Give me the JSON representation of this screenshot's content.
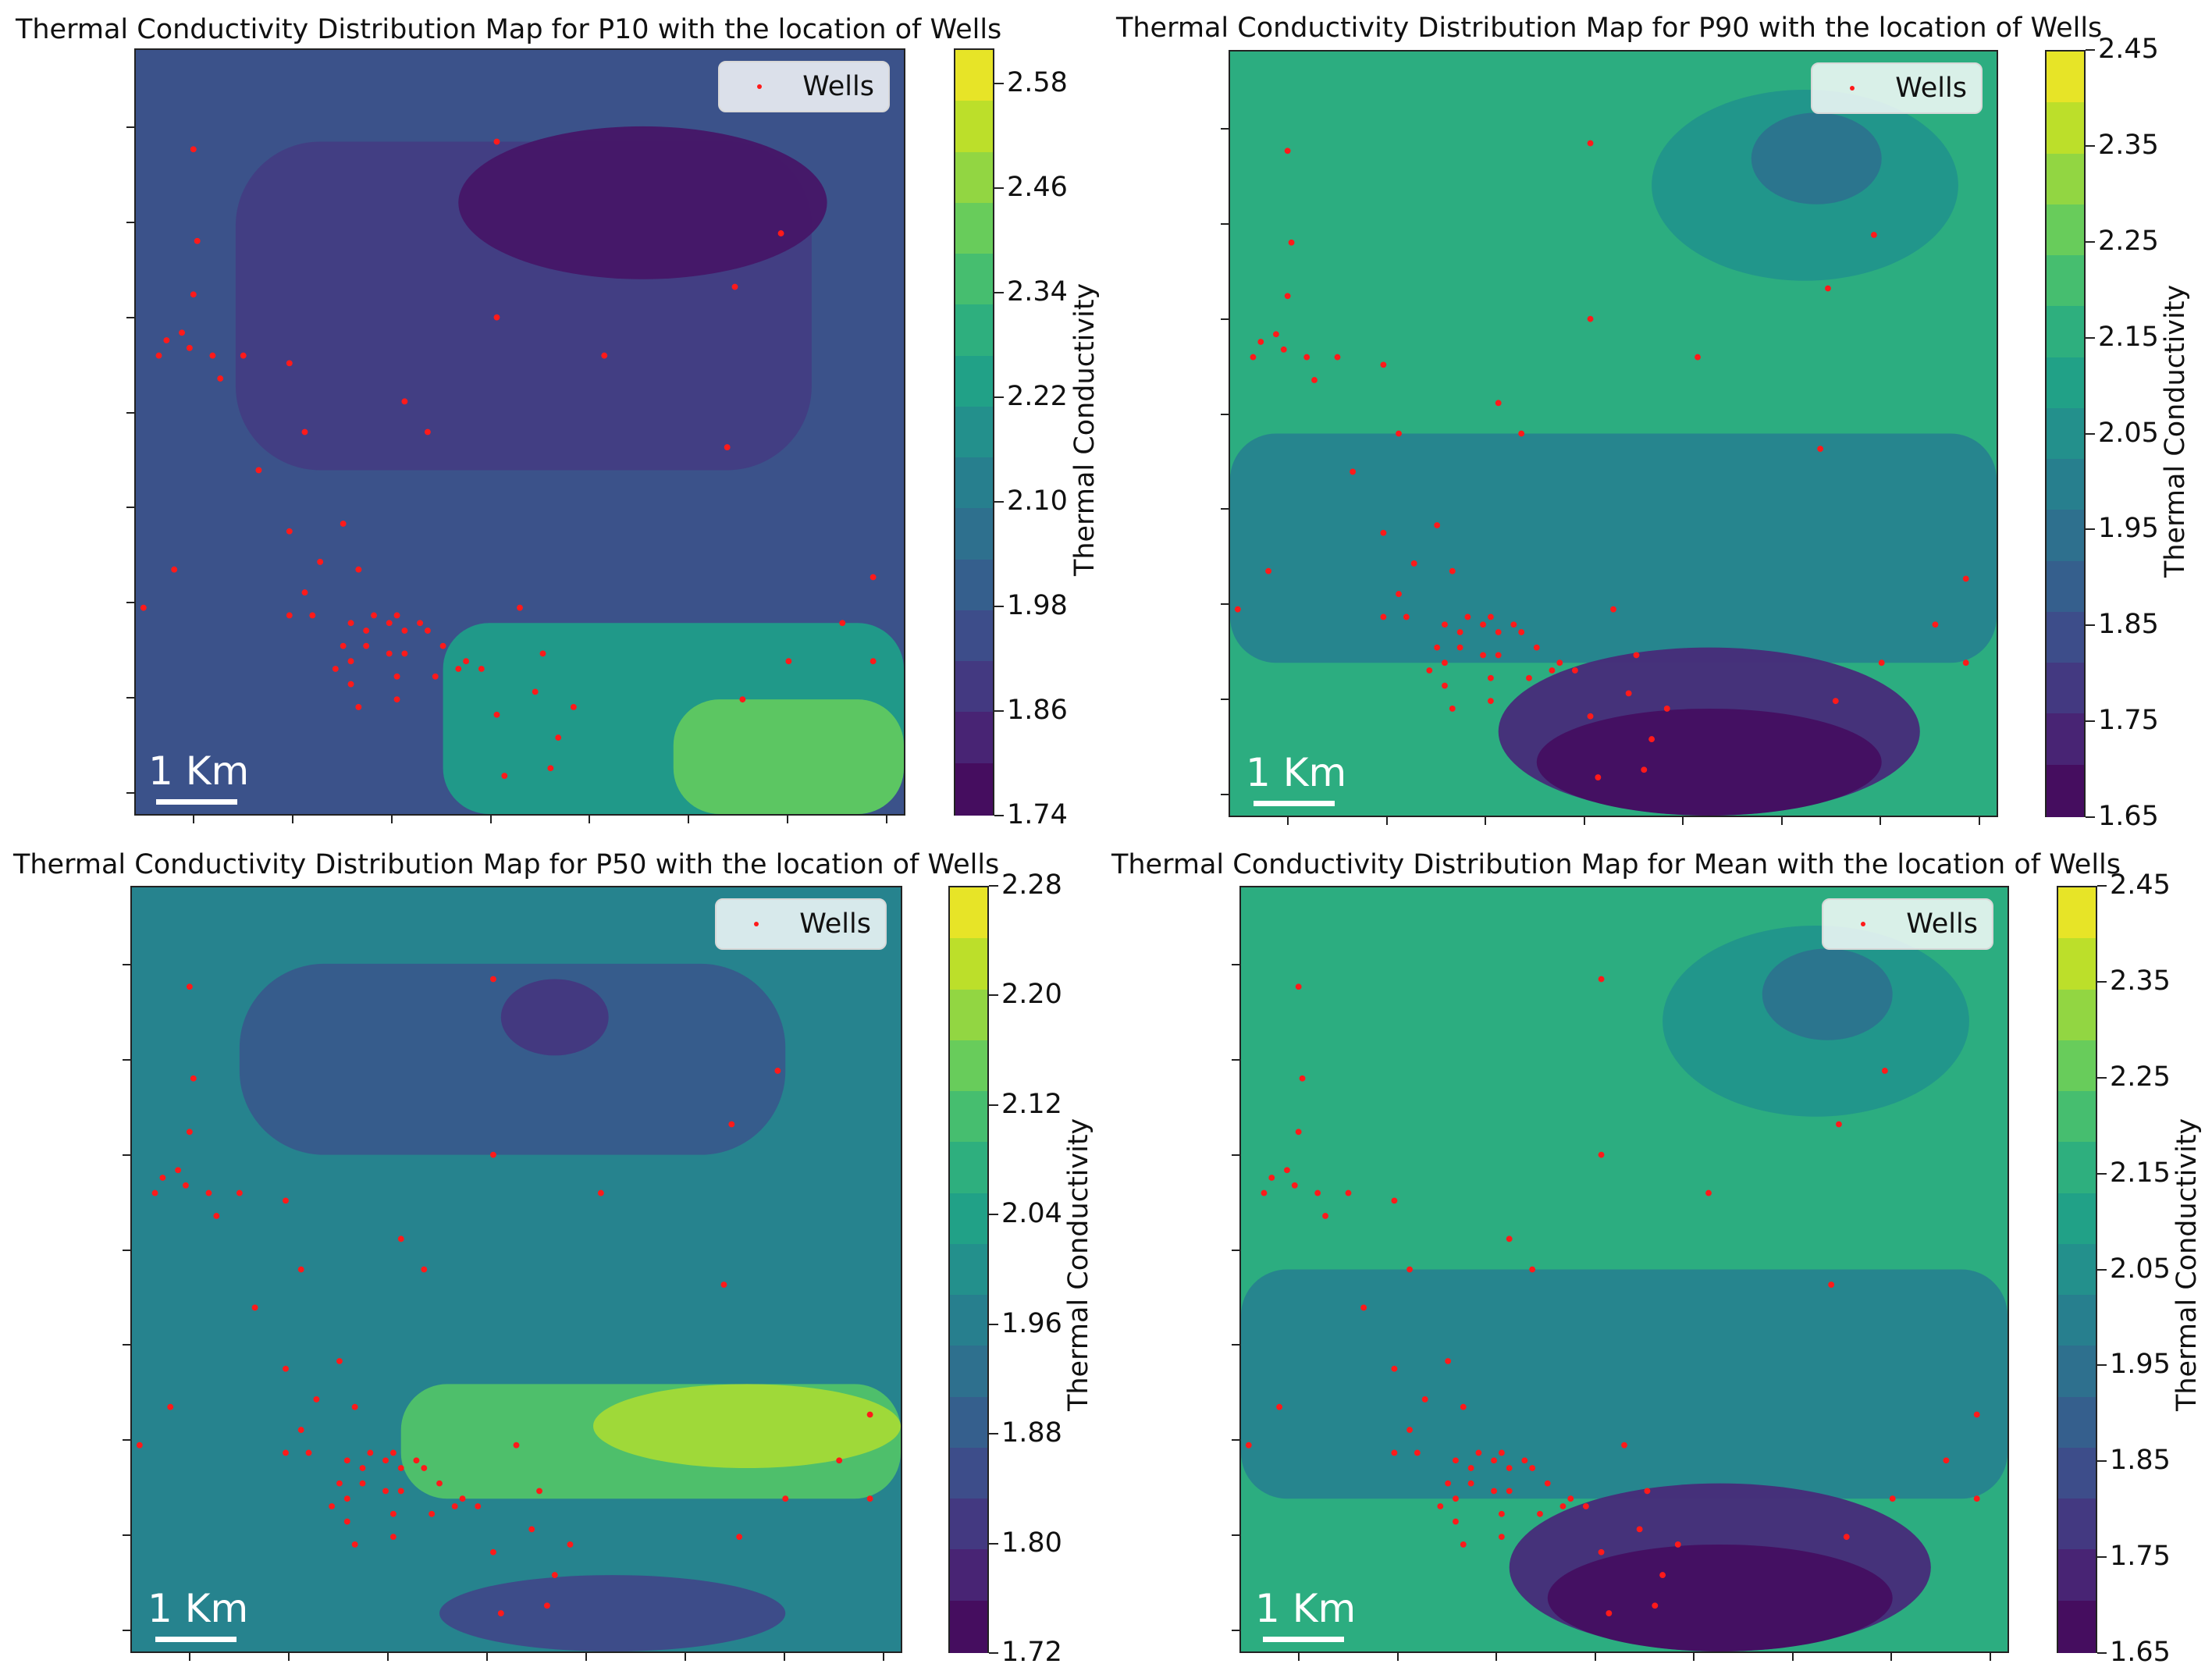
{
  "chart_data": [
    {
      "type": "heatmap",
      "title": "Thermal Conductivity Distribution Map for P10 with the location of Wells",
      "colorbar_label": "Thermal Conductivity",
      "colorbar_ticks": [
        "2.58",
        "2.46",
        "2.34",
        "2.22",
        "2.10",
        "1.98",
        "1.86",
        "1.74"
      ],
      "colorbar_range": [
        1.74,
        2.62
      ],
      "legend": "Wells",
      "legend_placement": "top-right",
      "scale_bar": "1 Km",
      "background_level": 0.25,
      "regions": [
        {
          "level": 0.18,
          "shape": "rounded-rect",
          "extent": [
            0.13,
            0.12,
            0.88,
            0.55
          ]
        },
        {
          "level": 0.06,
          "shape": "blob",
          "extent": [
            0.42,
            0.1,
            0.9,
            0.3
          ]
        },
        {
          "level": 0.55,
          "shape": "band",
          "extent": [
            0.4,
            0.75,
            1.0,
            1.0
          ]
        },
        {
          "level": 0.75,
          "shape": "band",
          "extent": [
            0.7,
            0.85,
            1.0,
            1.0
          ]
        }
      ]
    },
    {
      "type": "heatmap",
      "title": "Thermal Conductivity Distribution Map for P90 with the location of Wells",
      "colorbar_label": "Thermal Conductivity",
      "colorbar_ticks": [
        "2.45",
        "2.35",
        "2.25",
        "2.15",
        "2.05",
        "1.95",
        "1.85",
        "1.75",
        "1.65"
      ],
      "colorbar_range": [
        1.65,
        2.45
      ],
      "legend": "Wells",
      "legend_placement": "top-right",
      "scale_bar": "1 Km",
      "background_level": 0.62,
      "regions": [
        {
          "level": 0.52,
          "shape": "blob",
          "extent": [
            0.55,
            0.05,
            0.95,
            0.3
          ]
        },
        {
          "level": 0.38,
          "shape": "blob",
          "extent": [
            0.68,
            0.08,
            0.85,
            0.2
          ]
        },
        {
          "level": 0.45,
          "shape": "band",
          "extent": [
            0.0,
            0.5,
            1.0,
            0.8
          ]
        },
        {
          "level": 0.12,
          "shape": "blob",
          "extent": [
            0.35,
            0.78,
            0.9,
            1.0
          ]
        },
        {
          "level": 0.04,
          "shape": "blob",
          "extent": [
            0.4,
            0.86,
            0.85,
            1.0
          ]
        }
      ]
    },
    {
      "type": "heatmap",
      "title": "Thermal Conductivity Distribution Map for P50 with the location of Wells",
      "colorbar_label": "Thermal Conductivity",
      "colorbar_ticks": [
        "2.28",
        "2.20",
        "2.12",
        "2.04",
        "1.96",
        "1.88",
        "1.80",
        "1.72"
      ],
      "colorbar_range": [
        1.72,
        2.28
      ],
      "legend": "Wells",
      "legend_placement": "top-right",
      "scale_bar": "1 Km",
      "background_level": 0.45,
      "regions": [
        {
          "level": 0.28,
          "shape": "rounded-rect",
          "extent": [
            0.14,
            0.1,
            0.85,
            0.35
          ]
        },
        {
          "level": 0.16,
          "shape": "blob",
          "extent": [
            0.48,
            0.12,
            0.62,
            0.22
          ]
        },
        {
          "level": 0.72,
          "shape": "band",
          "extent": [
            0.35,
            0.65,
            1.0,
            0.8
          ]
        },
        {
          "level": 0.86,
          "shape": "blob",
          "extent": [
            0.6,
            0.65,
            1.0,
            0.76
          ]
        },
        {
          "level": 0.22,
          "shape": "blob",
          "extent": [
            0.4,
            0.9,
            0.85,
            1.0
          ]
        }
      ]
    },
    {
      "type": "heatmap",
      "title": "Thermal Conductivity Distribution Map for Mean with the location of Wells",
      "colorbar_label": "Thermal Conductivity",
      "colorbar_ticks": [
        "2.45",
        "2.35",
        "2.25",
        "2.15",
        "2.05",
        "1.95",
        "1.85",
        "1.75",
        "1.65"
      ],
      "colorbar_range": [
        1.65,
        2.45
      ],
      "legend": "Wells",
      "legend_placement": "top-right",
      "scale_bar": "1 Km",
      "background_level": 0.62,
      "regions": [
        {
          "level": 0.52,
          "shape": "blob",
          "extent": [
            0.55,
            0.05,
            0.95,
            0.3
          ]
        },
        {
          "level": 0.38,
          "shape": "blob",
          "extent": [
            0.68,
            0.08,
            0.85,
            0.2
          ]
        },
        {
          "level": 0.45,
          "shape": "band",
          "extent": [
            0.0,
            0.5,
            1.0,
            0.8
          ]
        },
        {
          "level": 0.12,
          "shape": "blob",
          "extent": [
            0.35,
            0.78,
            0.9,
            1.0
          ]
        },
        {
          "level": 0.04,
          "shape": "blob",
          "extent": [
            0.4,
            0.86,
            0.85,
            1.0
          ]
        }
      ]
    }
  ],
  "wells": {
    "color": "#ff1a1a",
    "points": [
      [
        0.075,
        0.13
      ],
      [
        0.08,
        0.25
      ],
      [
        0.075,
        0.32
      ],
      [
        0.06,
        0.37
      ],
      [
        0.04,
        0.38
      ],
      [
        0.03,
        0.4
      ],
      [
        0.07,
        0.39
      ],
      [
        0.1,
        0.4
      ],
      [
        0.11,
        0.43
      ],
      [
        0.14,
        0.4
      ],
      [
        0.2,
        0.41
      ],
      [
        0.16,
        0.55
      ],
      [
        0.22,
        0.5
      ],
      [
        0.05,
        0.68
      ],
      [
        0.01,
        0.73
      ],
      [
        0.2,
        0.63
      ],
      [
        0.24,
        0.67
      ],
      [
        0.27,
        0.62
      ],
      [
        0.29,
        0.68
      ],
      [
        0.2,
        0.74
      ],
      [
        0.22,
        0.71
      ],
      [
        0.23,
        0.74
      ],
      [
        0.28,
        0.75
      ],
      [
        0.3,
        0.76
      ],
      [
        0.31,
        0.74
      ],
      [
        0.33,
        0.75
      ],
      [
        0.34,
        0.74
      ],
      [
        0.35,
        0.76
      ],
      [
        0.37,
        0.75
      ],
      [
        0.38,
        0.76
      ],
      [
        0.27,
        0.78
      ],
      [
        0.28,
        0.8
      ],
      [
        0.26,
        0.81
      ],
      [
        0.3,
        0.78
      ],
      [
        0.33,
        0.79
      ],
      [
        0.35,
        0.79
      ],
      [
        0.4,
        0.78
      ],
      [
        0.42,
        0.81
      ],
      [
        0.45,
        0.81
      ],
      [
        0.28,
        0.83
      ],
      [
        0.34,
        0.82
      ],
      [
        0.39,
        0.82
      ],
      [
        0.43,
        0.8
      ],
      [
        0.29,
        0.86
      ],
      [
        0.34,
        0.85
      ],
      [
        0.47,
        0.12
      ],
      [
        0.47,
        0.35
      ],
      [
        0.35,
        0.46
      ],
      [
        0.38,
        0.5
      ],
      [
        0.61,
        0.4
      ],
      [
        0.84,
        0.24
      ],
      [
        0.78,
        0.31
      ],
      [
        0.77,
        0.52
      ],
      [
        0.5,
        0.73
      ],
      [
        0.53,
        0.79
      ],
      [
        0.52,
        0.84
      ],
      [
        0.57,
        0.86
      ],
      [
        0.47,
        0.87
      ],
      [
        0.55,
        0.9
      ],
      [
        0.54,
        0.94
      ],
      [
        0.48,
        0.95
      ],
      [
        0.79,
        0.85
      ],
      [
        0.85,
        0.8
      ],
      [
        0.92,
        0.75
      ],
      [
        0.96,
        0.69
      ],
      [
        0.96,
        0.8
      ]
    ]
  }
}
